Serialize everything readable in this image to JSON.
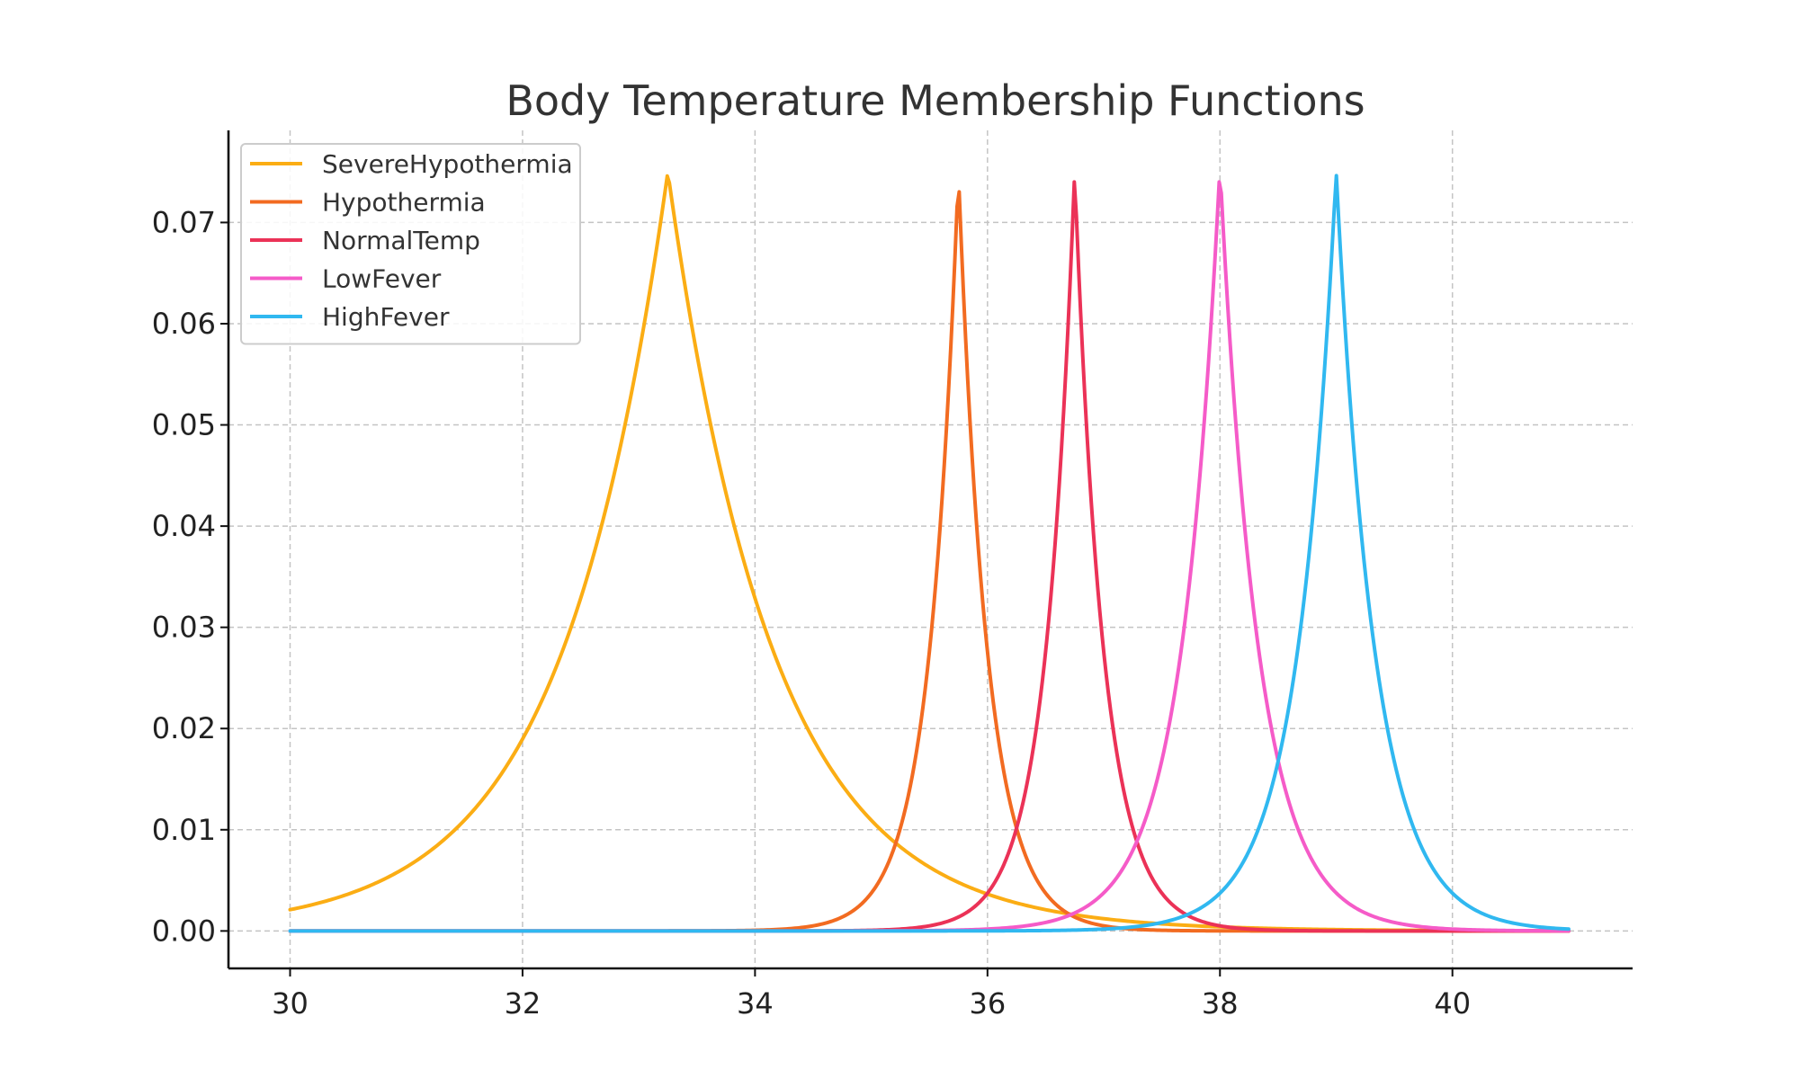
{
  "chart_data": {
    "type": "line",
    "title": "Body Temperature Membership Functions",
    "xlabel": "",
    "ylabel": "",
    "xlim": [
      29.47,
      41.55
    ],
    "ylim": [
      -0.0037,
      0.0791
    ],
    "x_domain": [
      30,
      41
    ],
    "xticks": [
      30,
      32,
      34,
      36,
      38,
      40
    ],
    "yticks": [
      0.0,
      0.01,
      0.02,
      0.03,
      0.04,
      0.05,
      0.06,
      0.07
    ],
    "ytick_labels": [
      "0.00",
      "0.01",
      "0.02",
      "0.03",
      "0.04",
      "0.05",
      "0.06",
      "0.07"
    ],
    "grid": true,
    "legend_position": "top-left",
    "series": [
      {
        "name": "SevereHypothermia",
        "color": "#FBAD14",
        "center": 33.25,
        "peak": 0.075,
        "decay": 1.1,
        "samples": [
          [
            30,
            0.0022
          ],
          [
            31,
            0.0062
          ],
          [
            32,
            0.02
          ],
          [
            33,
            0.063
          ],
          [
            33.25,
            0.075
          ],
          [
            34,
            0.035
          ],
          [
            35,
            0.0116
          ],
          [
            36,
            0.004
          ],
          [
            37,
            0.0014
          ],
          [
            38,
            0.0005
          ],
          [
            41,
            0.0001
          ]
        ]
      },
      {
        "name": "Hypothermia",
        "color": "#F26B21",
        "center": 35.75,
        "peak": 0.075,
        "decay": 4.0,
        "samples": [
          [
            30,
            0.0
          ],
          [
            34,
            0.0003
          ],
          [
            35,
            0.0037
          ],
          [
            35.5,
            0.031
          ],
          [
            35.75,
            0.075
          ],
          [
            36,
            0.036
          ],
          [
            36.5,
            0.004
          ],
          [
            37,
            0.0005
          ],
          [
            41,
            0.0
          ]
        ]
      },
      {
        "name": "NormalTemp",
        "color": "#EB3257",
        "center": 36.75,
        "peak": 0.075,
        "decay": 4.0,
        "samples": [
          [
            30,
            0.0
          ],
          [
            35,
            0.0001
          ],
          [
            36,
            0.002
          ],
          [
            36.5,
            0.027
          ],
          [
            36.75,
            0.075
          ],
          [
            37,
            0.029
          ],
          [
            37.5,
            0.003
          ],
          [
            38,
            0.0006
          ],
          [
            41,
            0.0
          ]
        ]
      },
      {
        "name": "LowFever",
        "color": "#F55BC8",
        "center": 38.0,
        "peak": 0.0755,
        "decay": 3.0,
        "samples": [
          [
            30,
            0.0
          ],
          [
            36,
            0.0002
          ],
          [
            37,
            0.0037
          ],
          [
            37.5,
            0.017
          ],
          [
            38,
            0.0755
          ],
          [
            38.5,
            0.021
          ],
          [
            39,
            0.0037
          ],
          [
            40,
            0.0005
          ],
          [
            41,
            0.0001
          ]
        ]
      },
      {
        "name": "HighFever",
        "color": "#30B8F0",
        "center": 39.0,
        "peak": 0.075,
        "decay": 3.0,
        "samples": [
          [
            30,
            0.0
          ],
          [
            37,
            0.0005
          ],
          [
            38,
            0.006
          ],
          [
            38.5,
            0.02
          ],
          [
            39,
            0.075
          ],
          [
            39.5,
            0.021
          ],
          [
            40,
            0.007
          ],
          [
            41,
            0.0006
          ]
        ]
      }
    ]
  }
}
